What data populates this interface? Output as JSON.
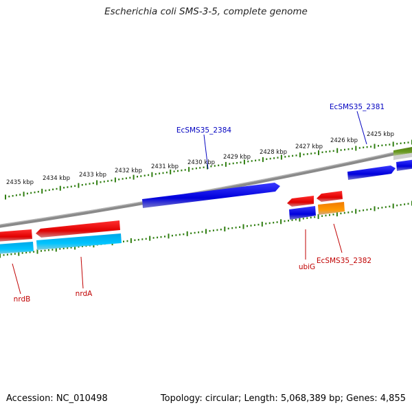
{
  "title": "Escherichia coli SMS-3-5, complete genome",
  "footer": {
    "accession": "Accession: NC_010498",
    "summary": "Topology: circular; Length: 5,068,389 bp; Genes: 4,855"
  },
  "colors": {
    "backbone": "#808080",
    "tick": "#2e7d0f",
    "tick_label": "#111111",
    "forward_gene": "#0000e0",
    "reverse_gene": "#e00000",
    "cds_cyan": "#00b8f0",
    "orange_feature": "#f08000",
    "olive_feature": "#5a8a1a",
    "label_blue": "#0000c0",
    "label_red": "#c00000"
  },
  "ticks": {
    "kbp": [
      2425,
      2426,
      2427,
      2428,
      2429,
      2430,
      2431,
      2432,
      2433,
      2434,
      2435
    ],
    "labels": [
      "2425 kbp",
      "2426 kbp",
      "2427 kbp",
      "2428 kbp",
      "2429 kbp",
      "2430 kbp",
      "2431 kbp",
      "2432 kbp",
      "2433 kbp",
      "2434 kbp",
      "2435 kbp"
    ]
  },
  "genes": [
    {
      "label": "EcSMS35_2384",
      "strand": "forward",
      "color": "forward_gene"
    },
    {
      "label": "EcSMS35_2381",
      "strand": "forward",
      "color": "forward_gene"
    },
    {
      "label": "ubiG",
      "strand": "reverse",
      "color": "reverse_gene"
    },
    {
      "label": "EcSMS35_2382",
      "strand": "reverse",
      "color": "reverse_gene"
    },
    {
      "label": "nrdB",
      "strand": "reverse",
      "color": "reverse_gene"
    },
    {
      "label": "nrdA",
      "strand": "reverse",
      "color": "reverse_gene"
    }
  ]
}
